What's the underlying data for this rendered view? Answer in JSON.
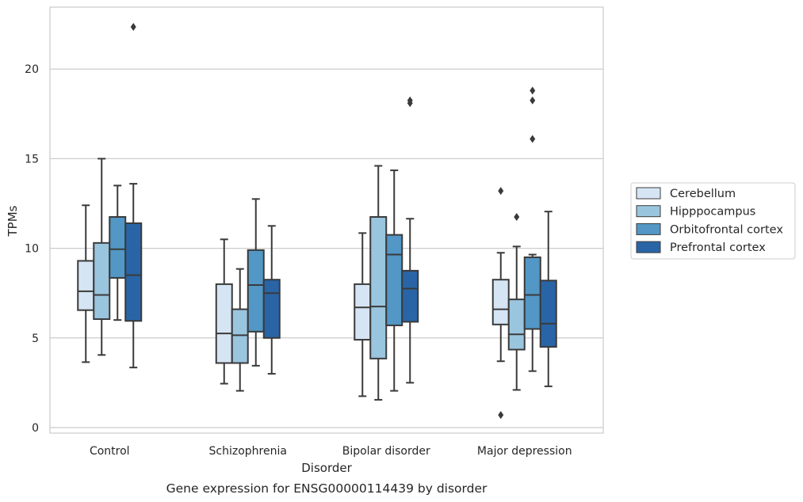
{
  "chart_data": {
    "type": "box",
    "caption": "Gene expression for ENSG00000114439 by disorder",
    "xlabel": "Disorder",
    "ylabel": "TPMs",
    "ylim": [
      -0.35,
      23.5
    ],
    "yticks": [
      0,
      5,
      10,
      15,
      20
    ],
    "grid": "horizontal",
    "legend_position": "right",
    "categories": [
      "Control",
      "Schizophrenia",
      "Bipolar disorder",
      "Major depression"
    ],
    "series": [
      {
        "name": "Cerebellum",
        "color": "#d6e5f4",
        "boxes": [
          {
            "whislo": 3.65,
            "q1": 6.55,
            "med": 7.6,
            "q3": 9.3,
            "whishi": 12.4,
            "fliers": []
          },
          {
            "whislo": 2.45,
            "q1": 3.6,
            "med": 5.25,
            "q3": 8.0,
            "whishi": 10.5,
            "fliers": []
          },
          {
            "whislo": 1.75,
            "q1": 4.9,
            "med": 6.7,
            "q3": 8.0,
            "whishi": 10.85,
            "fliers": []
          },
          {
            "whislo": 3.7,
            "q1": 5.75,
            "med": 6.6,
            "q3": 8.25,
            "whishi": 9.75,
            "fliers": [
              13.2,
              0.7
            ]
          }
        ]
      },
      {
        "name": "Hipppocampus",
        "color": "#9ac5de",
        "boxes": [
          {
            "whislo": 4.05,
            "q1": 6.05,
            "med": 7.4,
            "q3": 10.3,
            "whishi": 15.0,
            "fliers": []
          },
          {
            "whislo": 2.05,
            "q1": 3.6,
            "med": 5.15,
            "q3": 6.6,
            "whishi": 8.85,
            "fliers": []
          },
          {
            "whislo": 1.55,
            "q1": 3.85,
            "med": 6.75,
            "q3": 11.75,
            "whishi": 14.6,
            "fliers": []
          },
          {
            "whislo": 2.1,
            "q1": 4.35,
            "med": 5.2,
            "q3": 7.15,
            "whishi": 10.1,
            "fliers": [
              11.75
            ]
          }
        ]
      },
      {
        "name": "Orbitofrontal cortex",
        "color": "#5297c5",
        "boxes": [
          {
            "whislo": 6.0,
            "q1": 8.35,
            "med": 9.95,
            "q3": 11.75,
            "whishi": 13.5,
            "fliers": []
          },
          {
            "whislo": 3.45,
            "q1": 5.35,
            "med": 7.95,
            "q3": 9.9,
            "whishi": 12.75,
            "fliers": []
          },
          {
            "whislo": 2.05,
            "q1": 5.7,
            "med": 9.65,
            "q3": 10.75,
            "whishi": 14.35,
            "fliers": []
          },
          {
            "whislo": 3.15,
            "q1": 5.5,
            "med": 7.4,
            "q3": 9.5,
            "whishi": 9.65,
            "fliers": [
              16.1,
              18.25,
              18.8
            ]
          }
        ]
      },
      {
        "name": "Prefrontal cortex",
        "color": "#2965a6",
        "boxes": [
          {
            "whislo": 3.35,
            "q1": 5.95,
            "med": 8.5,
            "q3": 11.4,
            "whishi": 13.6,
            "fliers": [
              22.35
            ]
          },
          {
            "whislo": 3.0,
            "q1": 5.0,
            "med": 7.5,
            "q3": 8.25,
            "whishi": 11.25,
            "fliers": []
          },
          {
            "whislo": 2.5,
            "q1": 5.9,
            "med": 7.75,
            "q3": 8.75,
            "whishi": 11.65,
            "fliers": [
              18.1,
              18.25
            ]
          },
          {
            "whislo": 2.3,
            "q1": 4.5,
            "med": 5.8,
            "q3": 8.2,
            "whishi": 12.05,
            "fliers": []
          }
        ]
      }
    ]
  }
}
